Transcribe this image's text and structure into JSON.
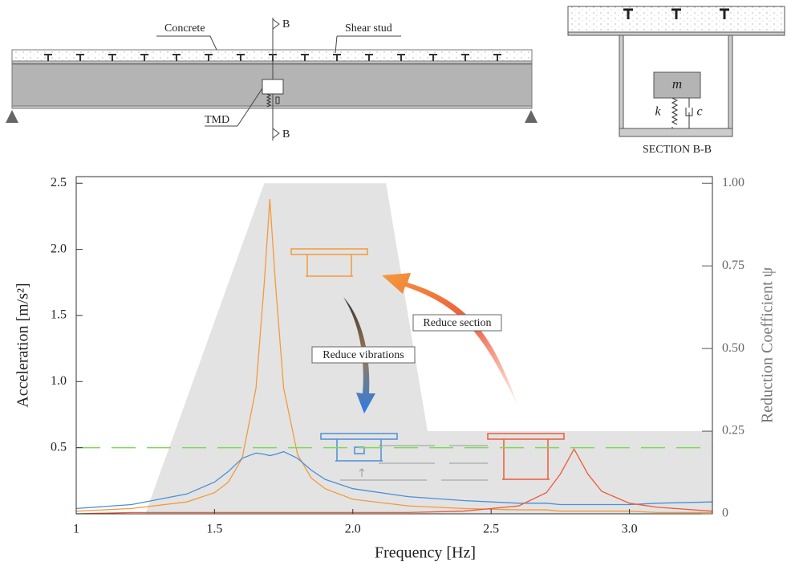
{
  "diagram": {
    "concrete": "Concrete",
    "shear_stud": "Shear stud",
    "section_top": "B",
    "section_bottom": "B",
    "tmd": "TMD",
    "mass": "m",
    "stiffness": "k",
    "damping": "c",
    "section_title": "SECTION B-B"
  },
  "chart_data": {
    "type": "line",
    "xlabel": "Frequency [Hz]",
    "ylabel": "Acceleration [m/s²]",
    "y2label": "Reduction Coefficient ψ",
    "annotations": [
      "Reduce section",
      "Reduce vibrations"
    ],
    "xlim": [
      1,
      3.3
    ],
    "ylim": [
      0,
      2.55
    ],
    "y2lim": [
      0,
      1.02
    ],
    "xticks": [
      1,
      1.5,
      {
        "value": 2,
        "label": "2.0"
      },
      2.5,
      {
        "value": 3,
        "label": "3.0"
      }
    ],
    "yticks": [
      0.5,
      {
        "value": 1,
        "label": "1.0"
      },
      1.5,
      {
        "value": 2,
        "label": "2.0"
      },
      2.5
    ],
    "y2ticks": [
      0,
      0.25,
      {
        "value": 0.5,
        "label": "0.50"
      },
      0.75,
      {
        "value": 1,
        "label": "1.00"
      }
    ],
    "x": [
      1.0,
      1.2,
      1.4,
      1.5,
      1.55,
      1.6,
      1.65,
      1.68,
      1.7,
      1.72,
      1.75,
      1.8,
      1.85,
      1.9,
      2.0,
      2.2,
      2.4,
      2.6,
      2.7,
      2.75,
      2.8,
      2.85,
      2.9,
      3.0,
      3.1,
      3.3
    ],
    "series": [
      {
        "color": "#f39a3c",
        "values": [
          0.02,
          0.04,
          0.09,
          0.16,
          0.24,
          0.42,
          0.95,
          1.75,
          2.38,
          1.75,
          0.95,
          0.45,
          0.27,
          0.19,
          0.11,
          0.06,
          0.04,
          0.03,
          0.03,
          0.02,
          0.02,
          0.02,
          0.02,
          0.02,
          0.01,
          0.01
        ]
      },
      {
        "color": "#4a8fd8",
        "values": [
          0.04,
          0.07,
          0.15,
          0.24,
          0.32,
          0.42,
          0.46,
          0.45,
          0.44,
          0.45,
          0.47,
          0.42,
          0.33,
          0.26,
          0.19,
          0.13,
          0.1,
          0.08,
          0.08,
          0.07,
          0.07,
          0.07,
          0.07,
          0.07,
          0.08,
          0.09
        ]
      },
      {
        "color": "#ee5a3a",
        "values": [
          0.0,
          0.01,
          0.01,
          0.01,
          0.01,
          0.01,
          0.01,
          0.01,
          0.01,
          0.01,
          0.01,
          0.01,
          0.01,
          0.01,
          0.01,
          0.01,
          0.02,
          0.06,
          0.16,
          0.3,
          0.49,
          0.3,
          0.17,
          0.08,
          0.05,
          0.02
        ]
      },
      {
        "color": "#7ed957",
        "dashed": true,
        "values": [
          0.5,
          0.5,
          0.5,
          0.5,
          0.5,
          0.5,
          0.5,
          0.5,
          0.5,
          0.5,
          0.5,
          0.5,
          0.5,
          0.5,
          0.5,
          0.5,
          0.5,
          0.5,
          0.5,
          0.5,
          0.5,
          0.5,
          0.5,
          0.5,
          0.5,
          0.5
        ]
      }
    ],
    "area": {
      "axis": "y2",
      "color": "#e3e3e3",
      "x": [
        1.25,
        1.68,
        2.12,
        2.27,
        3.3
      ],
      "values": [
        0,
        1,
        1,
        0.25,
        0.25
      ]
    }
  }
}
